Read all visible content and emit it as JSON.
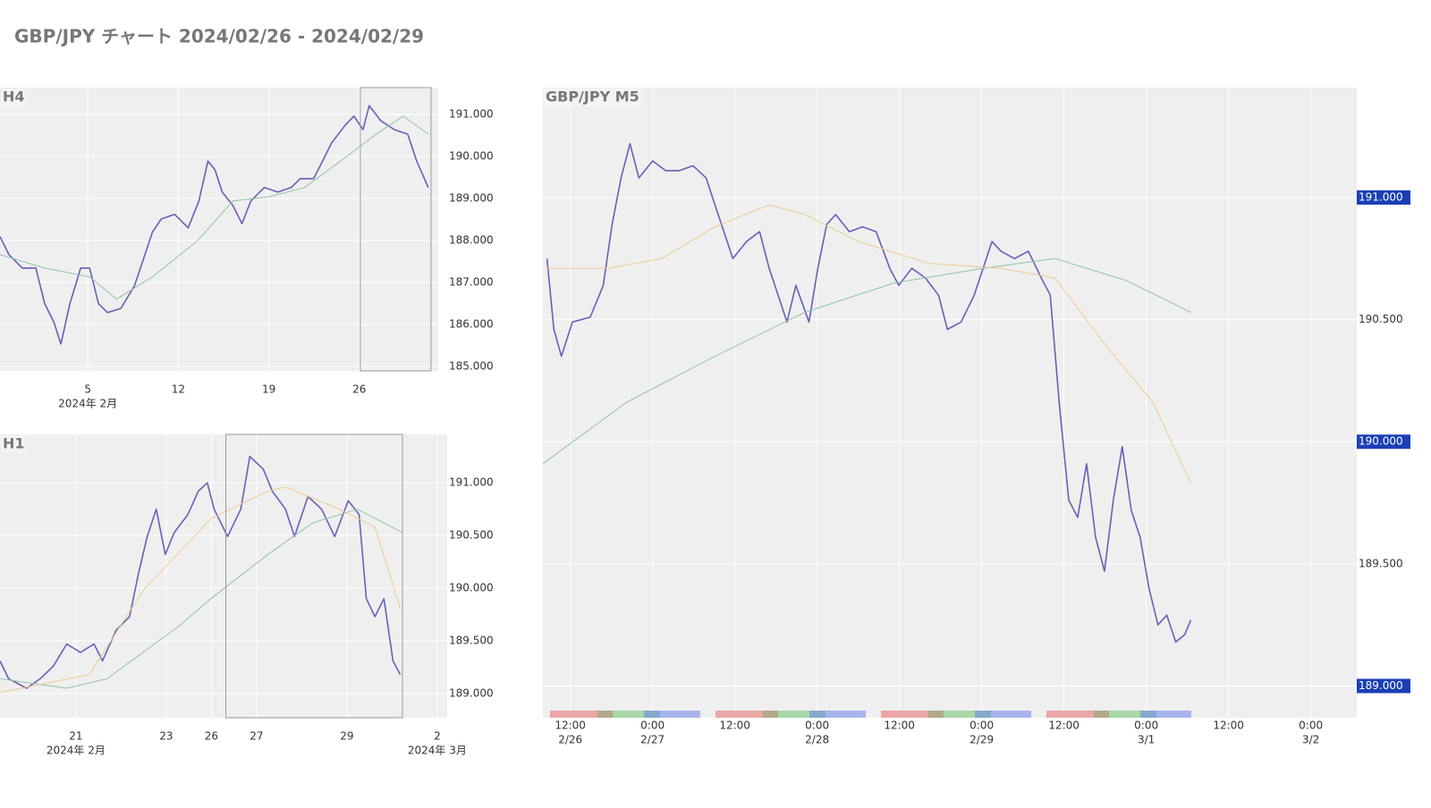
{
  "title": "GBP/JPY チャート 2024/02/26 - 2024/02/29",
  "chart_data": [
    {
      "type": "line",
      "title": "H4",
      "xlim": [
        -1.79,
        32.1
      ],
      "ylim": [
        184.89,
        191.64
      ],
      "xticks": [
        5,
        12,
        19,
        26
      ],
      "x_period_labels": [
        {
          "value": 5,
          "label": "2024年 2月"
        }
      ],
      "yticks": [
        {
          "value": 185,
          "label": "185.000"
        },
        {
          "value": 186,
          "label": "186.000"
        },
        {
          "value": 187,
          "label": "187.000"
        },
        {
          "value": 188,
          "label": "188.000"
        },
        {
          "value": 189,
          "label": "189.000"
        },
        {
          "value": 190,
          "label": "190.000"
        },
        {
          "value": 191,
          "label": "191.000"
        }
      ],
      "highlight_x": [
        26.07,
        31.54
      ],
      "grid": true,
      "series": [
        {
          "color": "#6a5fb8",
          "x": [
            -1.79,
            -1.1,
            -0.06,
            0.98,
            1.67,
            2.37,
            2.92,
            3.61,
            4.45,
            5.14,
            5.83,
            6.52,
            7.56,
            8.6,
            9.3,
            9.99,
            10.68,
            11.72,
            12.76,
            13.59,
            14.29,
            14.84,
            15.4,
            16.23,
            16.92,
            17.61,
            18.65,
            19.69,
            20.73,
            21.42,
            22.46,
            23.16,
            23.85,
            24.89,
            25.58,
            26.28,
            26.76,
            27.66,
            28.7,
            29.74,
            30.43,
            31.33
          ],
          "values": [
            188.09,
            187.66,
            187.34,
            187.34,
            186.49,
            186.06,
            185.53,
            186.49,
            187.34,
            187.34,
            186.49,
            186.28,
            186.38,
            186.91,
            187.55,
            188.19,
            188.51,
            188.62,
            188.3,
            188.94,
            189.89,
            189.68,
            189.15,
            188.83,
            188.4,
            188.94,
            189.26,
            189.15,
            189.26,
            189.47,
            189.47,
            189.89,
            190.32,
            190.74,
            190.96,
            190.64,
            191.21,
            190.85,
            190.64,
            190.53,
            189.89,
            189.26
          ]
        },
        {
          "color": "#8cc4a8",
          "x": [
            -1.79,
            1.67,
            5.14,
            7.22,
            9.99,
            13.45,
            16.23,
            19.0,
            21.77,
            24.54,
            27.31,
            29.39,
            31.33
          ],
          "values": [
            187.66,
            187.34,
            187.13,
            186.6,
            187.13,
            187.98,
            188.94,
            189.04,
            189.26,
            189.89,
            190.53,
            190.96,
            190.53
          ]
        }
      ]
    },
    {
      "type": "line",
      "title": "H1",
      "xlim": [
        19.32,
        31.22
      ],
      "ylim": [
        188.77,
        191.46
      ],
      "xbreak": [
        24,
        26
      ],
      "xticks": [
        21,
        23,
        26,
        27,
        29,
        {
          "value": 31,
          "label": "2"
        }
      ],
      "x_period_labels": [
        {
          "value": 21,
          "label": "2024年 2月"
        },
        {
          "value": 31,
          "label": "2024年 3月"
        }
      ],
      "yticks": [
        {
          "value": 189,
          "label": "189.000"
        },
        {
          "value": 189.5,
          "label": "189.500"
        },
        {
          "value": 190,
          "label": "190.000"
        },
        {
          "value": 190.5,
          "label": "190.500"
        },
        {
          "value": 191,
          "label": "191.000"
        }
      ],
      "highlight_x": [
        26.32,
        30.23
      ],
      "grid": true,
      "series": [
        {
          "color": "#6a5fb8",
          "x": [
            19.32,
            19.51,
            19.91,
            20.21,
            20.5,
            20.8,
            21.1,
            21.4,
            21.59,
            21.89,
            22.19,
            22.39,
            22.58,
            22.78,
            22.98,
            23.18,
            23.48,
            23.71,
            23.91,
            26.06,
            26.36,
            26.65,
            26.85,
            27.15,
            27.35,
            27.64,
            27.84,
            28.14,
            28.44,
            28.73,
            29.03,
            29.27,
            29.43,
            29.62,
            29.82,
            30.02,
            30.18
          ],
          "values": [
            189.31,
            189.14,
            189.05,
            189.14,
            189.26,
            189.47,
            189.39,
            189.47,
            189.31,
            189.6,
            189.73,
            190.15,
            190.49,
            190.75,
            190.32,
            190.53,
            190.7,
            190.92,
            191.0,
            190.75,
            190.49,
            190.75,
            191.25,
            191.13,
            190.92,
            190.75,
            190.49,
            190.87,
            190.75,
            190.49,
            190.83,
            190.7,
            189.9,
            189.73,
            189.9,
            189.31,
            189.18
          ]
        },
        {
          "color": "#8cc4a8",
          "x": [
            19.32,
            20.8,
            21.69,
            23.28,
            23.99,
            27.25,
            28.24,
            29.23,
            30.22
          ],
          "values": [
            189.14,
            189.05,
            189.14,
            189.64,
            189.9,
            190.32,
            190.62,
            190.75,
            190.53
          ]
        },
        {
          "color": "#f0c890",
          "x": [
            19.32,
            21.3,
            22.49,
            23.99,
            27.25,
            27.64,
            28.83,
            29.62,
            30.18
          ],
          "values": [
            189.01,
            189.18,
            189.98,
            190.66,
            190.92,
            190.96,
            190.75,
            190.58,
            189.81
          ]
        }
      ]
    },
    {
      "type": "line",
      "title": "GBP/JPY M5",
      "xlim": [
        8,
        126.7
      ],
      "ylim": [
        188.87,
        191.45
      ],
      "xticks": [
        {
          "value": 12,
          "label": "12:00"
        },
        {
          "value": 24,
          "label": "0:00"
        },
        {
          "value": 36,
          "label": "12:00"
        },
        {
          "value": 48,
          "label": "0:00"
        },
        {
          "value": 60,
          "label": "12:00"
        },
        {
          "value": 72,
          "label": "0:00"
        },
        {
          "value": 84,
          "label": "12:00"
        },
        {
          "value": 96,
          "label": "0:00"
        },
        {
          "value": 108,
          "label": "12:00"
        },
        {
          "value": 120,
          "label": "0:00"
        }
      ],
      "xtick_dates": [
        "2/26",
        "2/27",
        null,
        "2/28",
        null,
        "2/29",
        null,
        "3/1",
        null,
        "3/2"
      ],
      "yticks": [
        {
          "value": 189,
          "label": "189.000"
        },
        {
          "value": 189.5,
          "label": "189.500"
        },
        {
          "value": 190,
          "label": "190.000"
        },
        {
          "value": 190.5,
          "label": "190.500"
        },
        {
          "value": 191,
          "label": "191.000"
        }
      ],
      "highlight_color": "#1a3fb5",
      "grid": true,
      "series": [
        {
          "color": "#6a5fb8",
          "x": [
            8.6,
            9.6,
            10.7,
            12.3,
            14.9,
            16.8,
            18.1,
            19.4,
            20.7,
            22.0,
            24.0,
            25.9,
            27.9,
            29.9,
            31.8,
            33.1,
            34.4,
            35.7,
            37.7,
            39.6,
            41.0,
            42.3,
            43.6,
            44.9,
            46.8,
            48.1,
            49.4,
            50.7,
            52.7,
            54.6,
            56.6,
            58.6,
            59.9,
            61.8,
            63.8,
            65.7,
            67.0,
            69.0,
            70.9,
            72.2,
            73.5,
            74.8,
            76.8,
            78.8,
            80.7,
            82.0,
            83.3,
            84.7,
            86.0,
            87.3,
            88.6,
            89.9,
            91.2,
            92.5,
            93.8,
            95.1,
            96.4,
            97.7,
            99.0,
            100.3,
            101.6,
            102.5
          ],
          "values": [
            190.75,
            190.46,
            190.35,
            190.49,
            190.51,
            190.64,
            190.89,
            191.08,
            191.22,
            191.08,
            191.15,
            191.11,
            191.11,
            191.13,
            191.08,
            190.97,
            190.86,
            190.75,
            190.82,
            190.86,
            190.71,
            190.6,
            190.49,
            190.64,
            190.49,
            190.71,
            190.89,
            190.93,
            190.86,
            190.88,
            190.86,
            190.71,
            190.64,
            190.71,
            190.67,
            190.6,
            190.46,
            190.49,
            190.6,
            190.71,
            190.82,
            190.78,
            190.75,
            190.78,
            190.67,
            190.6,
            190.16,
            189.76,
            189.69,
            189.91,
            189.61,
            189.47,
            189.76,
            189.98,
            189.72,
            189.61,
            189.4,
            189.25,
            189.29,
            189.18,
            189.21,
            189.27
          ]
        },
        {
          "color": "#8cc4a8",
          "x": [
            8,
            20.1,
            33.1,
            46.2,
            59.2,
            72.2,
            82.7,
            93.1,
            102.5
          ],
          "values": [
            189.91,
            190.16,
            190.35,
            190.53,
            190.65,
            190.71,
            190.75,
            190.66,
            190.53
          ]
        },
        {
          "color": "#f0c890",
          "x": [
            8.6,
            17.5,
            25.3,
            33.1,
            41,
            46.2,
            54,
            64.4,
            74.8,
            82.7,
            90.5,
            97,
            102.5
          ],
          "values": [
            190.71,
            190.71,
            190.75,
            190.88,
            190.97,
            190.93,
            190.82,
            190.73,
            190.71,
            190.67,
            190.38,
            190.16,
            189.83
          ]
        }
      ]
    }
  ]
}
